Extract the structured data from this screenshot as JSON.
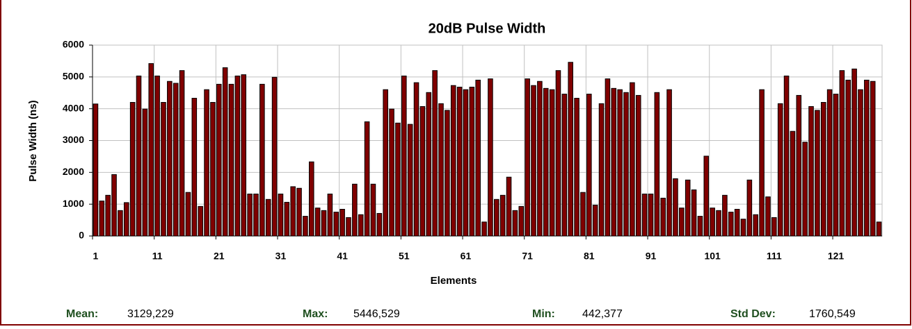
{
  "chart_data": {
    "type": "bar",
    "title": "20dB Pulse Width",
    "x_label": "Elements",
    "y_label": "Pulse Width (ns)",
    "categories": [
      1,
      null,
      null,
      null,
      null,
      null,
      null,
      null,
      null,
      null,
      11,
      null,
      null,
      null,
      null,
      null,
      null,
      null,
      null,
      null,
      21,
      null,
      null,
      null,
      null,
      null,
      null,
      null,
      null,
      null,
      31,
      null,
      null,
      null,
      null,
      null,
      null,
      null,
      null,
      null,
      41,
      null,
      null,
      null,
      null,
      null,
      null,
      null,
      null,
      null,
      51,
      null,
      null,
      null,
      null,
      null,
      null,
      null,
      null,
      null,
      61,
      null,
      null,
      null,
      null,
      null,
      null,
      null,
      null,
      null,
      71,
      null,
      null,
      null,
      null,
      null,
      null,
      null,
      null,
      null,
      81,
      null,
      null,
      null,
      null,
      null,
      null,
      null,
      null,
      null,
      91,
      null,
      null,
      null,
      null,
      null,
      null,
      null,
      null,
      null,
      101,
      null,
      null,
      null,
      null,
      null,
      null,
      null,
      null,
      null,
      111,
      null,
      null,
      null,
      null,
      null,
      null,
      null,
      null,
      null,
      121,
      null,
      null,
      null,
      null,
      null,
      null,
      null
    ],
    "values": [
      4150,
      1100,
      1280,
      1930,
      800,
      1050,
      4200,
      5030,
      3990,
      5420,
      5030,
      4200,
      4860,
      4800,
      5200,
      1370,
      4330,
      930,
      4600,
      4200,
      4770,
      5290,
      4770,
      5030,
      5070,
      1320,
      1320,
      4770,
      1150,
      4990,
      1320,
      1060,
      1550,
      1500,
      620,
      2330,
      880,
      800,
      1320,
      750,
      840,
      580,
      1630,
      670,
      3590,
      1630,
      710,
      4600,
      3990,
      3550,
      5030,
      3510,
      4820,
      4070,
      4510,
      5200,
      4160,
      3950,
      4730,
      4680,
      4600,
      4680,
      4900,
      440,
      4940,
      1150,
      1280,
      1850,
      800,
      930,
      4940,
      4730,
      4860,
      4640,
      4600,
      5200,
      4460,
      5460,
      4330,
      1370,
      4460,
      970,
      4160,
      4940,
      4640,
      4600,
      4510,
      4820,
      4420,
      1320,
      1320,
      4510,
      1190,
      4600,
      1800,
      880,
      1760,
      1450,
      620,
      2510,
      880,
      800,
      1280,
      750,
      840,
      530,
      1760,
      670,
      4600,
      1230,
      580,
      4160,
      5030,
      3290,
      4420,
      2950,
      4070,
      3950,
      4200,
      4600,
      4460,
      5200,
      4900,
      5250,
      4600,
      4900,
      4860,
      440
    ],
    "color": "#800000",
    "ylim": [
      0,
      6000
    ],
    "yticks": [
      0,
      1000,
      2000,
      3000,
      4000,
      5000,
      6000
    ],
    "grid": true,
    "stats": [
      {
        "label": "Mean:",
        "value": "3129,229"
      },
      {
        "label": "Max:",
        "value": "5446,529"
      },
      {
        "label": "Min:",
        "value": "442,377"
      },
      {
        "label": "Std Dev:",
        "value": "1760,549"
      }
    ]
  }
}
